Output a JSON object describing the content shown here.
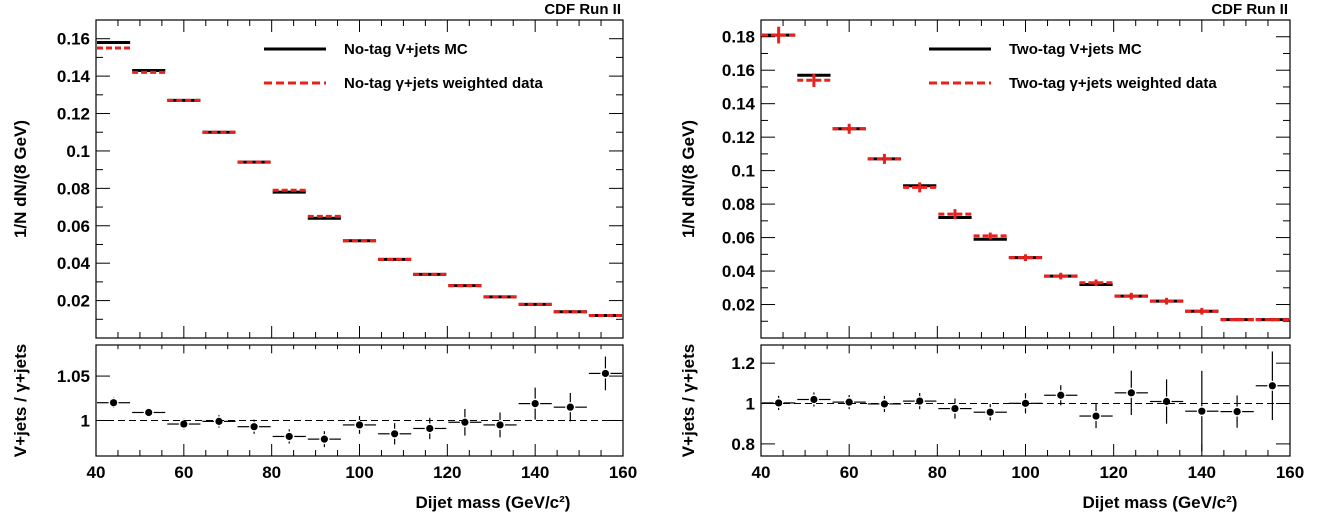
{
  "chart_data": [
    {
      "type": "histogram_with_ratio",
      "corner_label": "CDF Run II",
      "xlabel": "Dijet mass (GeV/c²)",
      "ylabel_top": "1/N dN/(8 GeV)",
      "ylabel_bottom": "V+jets / γ+jets",
      "xlim": [
        40,
        160
      ],
      "xticks": [
        40,
        60,
        80,
        100,
        120,
        140,
        160
      ],
      "ylim_top": [
        0,
        0.17
      ],
      "yticks_top": [
        0.02,
        0.04,
        0.06,
        0.08,
        0.1,
        0.12,
        0.14,
        0.16
      ],
      "ylim_bottom": [
        0.96,
        1.085
      ],
      "yticks_bottom": [
        1,
        1.05
      ],
      "ratio_reference": 1,
      "legend_position": "top-right",
      "bin_edges": [
        40,
        48,
        56,
        64,
        72,
        80,
        88,
        96,
        104,
        112,
        120,
        128,
        136,
        144,
        152,
        160
      ],
      "series": [
        {
          "name": "No-tag V+jets MC",
          "color": "#000000",
          "style": "solid",
          "values": [
            0.158,
            0.143,
            0.127,
            0.11,
            0.094,
            0.078,
            0.064,
            0.052,
            0.042,
            0.034,
            0.028,
            0.022,
            0.018,
            0.014,
            0.012
          ],
          "err": 0
        },
        {
          "name": "No-tag γ+jets weighted data",
          "color": "#e8211d",
          "style": "dashed",
          "values": [
            0.155,
            0.142,
            0.127,
            0.11,
            0.094,
            0.079,
            0.065,
            0.052,
            0.042,
            0.034,
            0.028,
            0.022,
            0.018,
            0.014,
            0.012
          ],
          "err": 0
        }
      ],
      "ratio": {
        "values": [
          1.02,
          1.009,
          0.996,
          0.999,
          0.993,
          0.982,
          0.979,
          0.995,
          0.985,
          0.991,
          0.998,
          0.995,
          1.019,
          1.015,
          1.053
        ],
        "err": [
          0.006,
          0.005,
          0.006,
          0.007,
          0.008,
          0.008,
          0.009,
          0.01,
          0.012,
          0.012,
          0.015,
          0.014,
          0.018,
          0.016,
          0.019
        ]
      }
    },
    {
      "type": "histogram_with_ratio",
      "corner_label": "CDF Run II",
      "xlabel": "Dijet mass (GeV/c²)",
      "ylabel_top": "1/N dN/(8 GeV)",
      "ylabel_bottom": "V+jets / γ+jets",
      "xlim": [
        40,
        160
      ],
      "xticks": [
        40,
        60,
        80,
        100,
        120,
        140,
        160
      ],
      "ylim_top": [
        0,
        0.19
      ],
      "yticks_top": [
        0.02,
        0.04,
        0.06,
        0.08,
        0.1,
        0.12,
        0.14,
        0.16,
        0.18
      ],
      "ylim_bottom": [
        0.74,
        1.29
      ],
      "yticks_bottom": [
        0.8,
        1,
        1.2
      ],
      "ratio_reference": 1,
      "legend_position": "top-right",
      "bin_edges": [
        40,
        48,
        56,
        64,
        72,
        80,
        88,
        96,
        104,
        112,
        120,
        128,
        136,
        144,
        152,
        160
      ],
      "series": [
        {
          "name": "Two-tag V+jets MC",
          "color": "#000000",
          "style": "solid",
          "values": [
            0.181,
            0.157,
            0.125,
            0.107,
            0.091,
            0.072,
            0.059,
            0.048,
            0.037,
            0.032,
            0.025,
            0.022,
            0.016,
            0.011,
            0.011
          ],
          "err": 0
        },
        {
          "name": "Two-tag γ+jets weighted data",
          "color": "#e8211d",
          "style": "dashed",
          "values": [
            0.181,
            0.154,
            0.125,
            0.107,
            0.09,
            0.074,
            0.061,
            0.048,
            0.037,
            0.033,
            0.025,
            0.022,
            0.016,
            0.011,
            0.011
          ],
          "err": [
            0.005,
            0.004,
            0.003,
            0.003,
            0.003,
            0.003,
            0.002,
            0.002,
            0.002,
            0.002,
            0.002,
            0.002,
            0.002,
            0.001,
            0.001
          ]
        }
      ],
      "ratio": {
        "values": [
          1.003,
          1.02,
          1.007,
          0.998,
          1.012,
          0.975,
          0.957,
          1.001,
          1.041,
          0.938,
          1.053,
          1.01,
          0.962,
          0.96,
          1.088
        ],
        "err": [
          0.035,
          0.035,
          0.035,
          0.04,
          0.04,
          0.05,
          0.04,
          0.05,
          0.05,
          0.06,
          0.11,
          0.11,
          0.2,
          0.08,
          0.17
        ]
      }
    }
  ]
}
